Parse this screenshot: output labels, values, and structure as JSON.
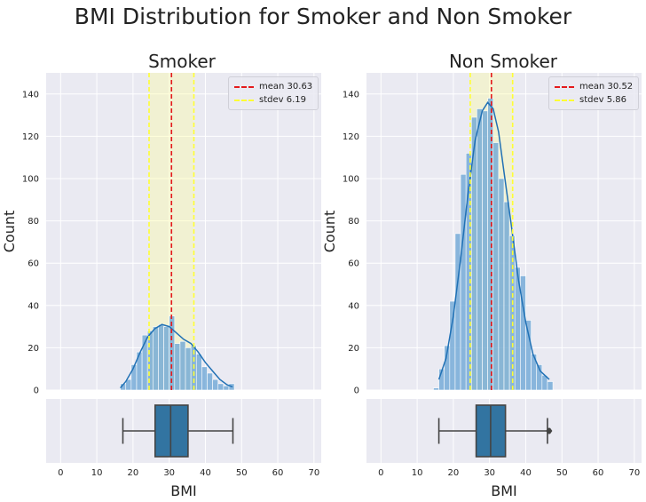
{
  "figure": {
    "title": "BMI Distribution for Smoker and Non Smoker"
  },
  "chart_data": [
    {
      "type": "bar",
      "title": "Smoker",
      "ylabel": "Count",
      "xlabel": "BMI",
      "xlim": [
        -4,
        72
      ],
      "ylim": [
        0,
        150
      ],
      "xticks": [
        0,
        10,
        20,
        30,
        40,
        50,
        60,
        70
      ],
      "yticks": [
        0,
        20,
        40,
        60,
        80,
        100,
        120,
        140
      ],
      "grid": true,
      "bin_width": 1.5,
      "bins_start": [
        16.5,
        18.0,
        19.5,
        21.0,
        22.5,
        24.0,
        25.5,
        27.0,
        28.5,
        30.0,
        31.5,
        33.0,
        34.5,
        36.0,
        37.5,
        39.0,
        40.5,
        42.0,
        43.5,
        45.0,
        46.5
      ],
      "counts": [
        3,
        5,
        12,
        18,
        26,
        28,
        30,
        31,
        30,
        35,
        22,
        23,
        20,
        21,
        17,
        11,
        8,
        5,
        3,
        2,
        3
      ],
      "kde_points": [
        [
          16.5,
          1
        ],
        [
          18,
          4
        ],
        [
          20,
          10
        ],
        [
          22,
          18
        ],
        [
          24,
          25
        ],
        [
          26,
          29
        ],
        [
          28,
          31
        ],
        [
          30,
          30
        ],
        [
          32,
          27
        ],
        [
          34,
          24
        ],
        [
          36,
          22
        ],
        [
          38,
          18
        ],
        [
          40,
          13
        ],
        [
          42,
          9
        ],
        [
          44,
          5
        ],
        [
          46,
          2.5
        ],
        [
          47.5,
          1.5
        ]
      ],
      "mean": 30.63,
      "stdev": 6.19,
      "legend": {
        "mean_label": "mean 30.63",
        "stdev_label": "stdev 6.19",
        "position": "top-right"
      },
      "box": {
        "whisker_low": 17.2,
        "q1": 26.1,
        "median": 30.4,
        "q3": 35.2,
        "whisker_high": 47.6,
        "outliers": []
      }
    },
    {
      "type": "bar",
      "title": "Non Smoker",
      "ylabel": "Count",
      "xlabel": "BMI",
      "xlim": [
        -4,
        72
      ],
      "ylim": [
        0,
        150
      ],
      "xticks": [
        0,
        10,
        20,
        30,
        40,
        50,
        60,
        70
      ],
      "yticks": [
        0,
        20,
        40,
        60,
        80,
        100,
        120,
        140
      ],
      "grid": true,
      "bin_width": 1.5,
      "bins_start": [
        14.5,
        16.0,
        17.5,
        19.0,
        20.5,
        22.0,
        23.5,
        25.0,
        26.5,
        28.0,
        29.5,
        31.0,
        32.5,
        34.0,
        35.5,
        37.0,
        38.5,
        40.0,
        41.5,
        43.0,
        44.5,
        46.0
      ],
      "counts": [
        1,
        10,
        21,
        42,
        74,
        102,
        112,
        129,
        133,
        132,
        138,
        117,
        100,
        89,
        73,
        58,
        54,
        33,
        17,
        12,
        7,
        4
      ],
      "kde_points": [
        [
          16,
          5
        ],
        [
          18,
          15
        ],
        [
          20,
          35
        ],
        [
          22,
          62
        ],
        [
          24,
          92
        ],
        [
          26,
          118
        ],
        [
          28,
          132
        ],
        [
          29.5,
          136
        ],
        [
          31,
          133
        ],
        [
          32.5,
          122
        ],
        [
          34,
          103
        ],
        [
          36,
          78
        ],
        [
          38,
          52
        ],
        [
          40,
          32
        ],
        [
          42,
          17
        ],
        [
          44,
          9
        ],
        [
          46.5,
          5
        ]
      ],
      "mean": 30.52,
      "stdev": 5.86,
      "legend": {
        "mean_label": "mean 30.52",
        "stdev_label": "stdev 5.86",
        "position": "top-right"
      },
      "box": {
        "whisker_low": 16.0,
        "q1": 26.3,
        "median": 30.3,
        "q3": 34.4,
        "whisker_high": 46.0,
        "outliers": [
          46.2,
          46.4,
          46.5,
          46.7
        ]
      }
    }
  ],
  "colors": {
    "bar": "#6fa8d6",
    "kde": "#2171b5",
    "mean_line": "#e41a1c",
    "stdev_line": "#ffff33",
    "stdev_band": "#ffff99",
    "box": "#3274a1",
    "axes_bg": "#eaeaf2",
    "grid": "#ffffff"
  }
}
